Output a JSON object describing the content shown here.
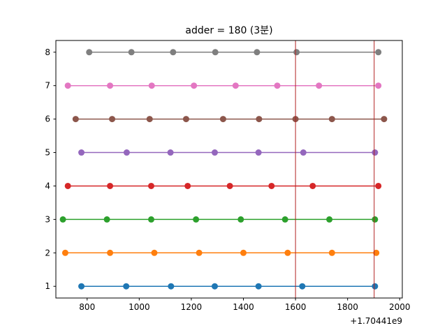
{
  "chart_data": {
    "type": "line",
    "title": "adder = 180 (3분)",
    "xlabel": "",
    "ylabel": "",
    "x_offset_label": "+1.70441e9",
    "xlim": [
      680,
      2010
    ],
    "ylim": [
      0.65,
      8.35
    ],
    "x_ticks": [
      800,
      1000,
      1200,
      1400,
      1600,
      1800,
      2000
    ],
    "y_ticks": [
      1,
      2,
      3,
      4,
      5,
      6,
      7,
      8
    ],
    "grid": false,
    "legend": "none",
    "vlines": [
      {
        "x": 1600,
        "color": "#b22222"
      },
      {
        "x": 1902,
        "color": "#b22222"
      }
    ],
    "series": [
      {
        "color": "#1f77b4",
        "y": 1,
        "x": [
          778,
          950,
          1122,
          1290,
          1458,
          1626,
          1905
        ]
      },
      {
        "color": "#ff7f0e",
        "y": 2,
        "x": [
          716,
          888,
          1058,
          1230,
          1400,
          1570,
          1740,
          1910
        ]
      },
      {
        "color": "#2ca02c",
        "y": 3,
        "x": [
          707,
          876,
          1046,
          1218,
          1390,
          1560,
          1730,
          1905
        ]
      },
      {
        "color": "#d62728",
        "y": 4,
        "x": [
          726,
          888,
          1046,
          1186,
          1348,
          1508,
          1666,
          1918
        ]
      },
      {
        "color": "#9467bd",
        "y": 5,
        "x": [
          778,
          952,
          1120,
          1290,
          1458,
          1630,
          1905
        ]
      },
      {
        "color": "#8c564b",
        "y": 6,
        "x": [
          756,
          896,
          1040,
          1180,
          1322,
          1460,
          1600,
          1740,
          1940
        ]
      },
      {
        "color": "#e377c2",
        "y": 7,
        "x": [
          726,
          888,
          1048,
          1210,
          1370,
          1530,
          1690,
          1918
        ]
      },
      {
        "color": "#7f7f7f",
        "y": 8,
        "x": [
          808,
          970,
          1130,
          1292,
          1452,
          1604,
          1918
        ]
      }
    ]
  }
}
